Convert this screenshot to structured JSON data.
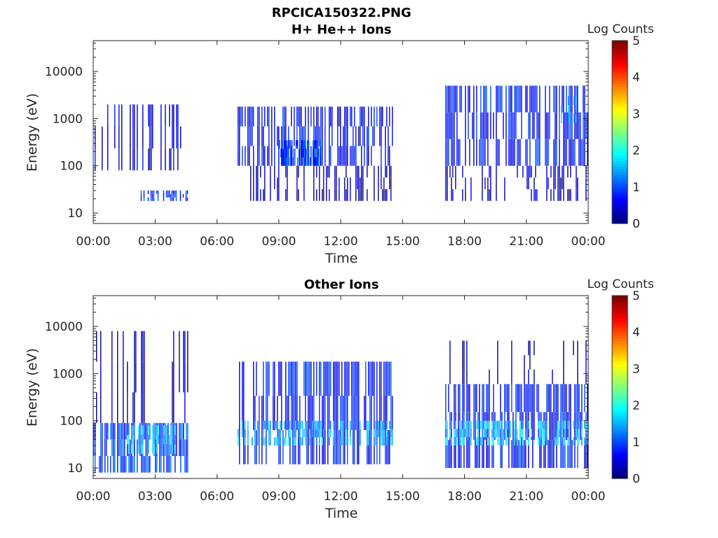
{
  "figure": {
    "title_line1": "RPCICA150322.PNG"
  },
  "colors": {
    "colormap": [
      "#00007f",
      "#0000ff",
      "#007fff",
      "#00ffff",
      "#7fff7f",
      "#ffff00",
      "#ff7f00",
      "#ff0000",
      "#7f0000"
    ],
    "axis": "#262626"
  },
  "chart_data": [
    {
      "type": "heatmap",
      "title": "H+ He++ Ions",
      "xlabel": "Time",
      "ylabel": "Energy (eV)",
      "yscale": "log",
      "ylim": [
        6,
        45000
      ],
      "xlim": [
        0,
        24
      ],
      "x_ticks": [
        "00:00",
        "03:00",
        "06:00",
        "09:00",
        "12:00",
        "15:00",
        "18:00",
        "21:00",
        "00:00"
      ],
      "y_ticks": [
        "10",
        "100",
        "1000",
        "10000"
      ],
      "y_tick_values": [
        10,
        100,
        1000,
        10000
      ],
      "colorbar": {
        "label": "Log Counts",
        "ticks": [
          "0",
          "1",
          "2",
          "3",
          "4",
          "5"
        ],
        "range": [
          0,
          5
        ]
      },
      "data_coverage_hours": [
        [
          0.0,
          4.6
        ],
        [
          7.0,
          14.5
        ],
        [
          17.0,
          24.0
        ]
      ],
      "bands": [
        {
          "t": [
            0.0,
            4.6
          ],
          "e": [
            80,
            2000
          ],
          "level": 0.4,
          "density": 0.35
        },
        {
          "t": [
            2.3,
            4.6
          ],
          "e": [
            18,
            30
          ],
          "level": 0.8,
          "density": 0.8
        },
        {
          "t": [
            7.0,
            14.5
          ],
          "e": [
            100,
            1800
          ],
          "level": 0.6,
          "density": 0.75
        },
        {
          "t": [
            7.0,
            14.5
          ],
          "e": [
            18,
            100
          ],
          "level": 0.2,
          "density": 0.4
        },
        {
          "t": [
            9.0,
            11.0
          ],
          "e": [
            100,
            350
          ],
          "level": 1.0,
          "density": 0.9
        },
        {
          "t": [
            17.0,
            24.0
          ],
          "e": [
            100,
            5000
          ],
          "level": 0.7,
          "density": 0.8
        },
        {
          "t": [
            17.0,
            24.0
          ],
          "e": [
            18,
            100
          ],
          "level": 0.3,
          "density": 0.45
        },
        {
          "t": [
            22.0,
            23.5
          ],
          "e": [
            800,
            3000
          ],
          "level": 1.6,
          "density": 0.15
        }
      ]
    },
    {
      "type": "heatmap",
      "title": "Other Ions",
      "xlabel": "Time",
      "ylabel": "Energy (eV)",
      "yscale": "log",
      "ylim": [
        6,
        45000
      ],
      "xlim": [
        0,
        24
      ],
      "x_ticks": [
        "00:00",
        "03:00",
        "06:00",
        "09:00",
        "12:00",
        "15:00",
        "18:00",
        "21:00",
        "00:00"
      ],
      "y_ticks": [
        "10",
        "100",
        "1000",
        "10000"
      ],
      "y_tick_values": [
        10,
        100,
        1000,
        10000
      ],
      "colorbar": {
        "label": "Log Counts",
        "ticks": [
          "0",
          "1",
          "2",
          "3",
          "4",
          "5"
        ],
        "range": [
          0,
          5
        ]
      },
      "data_coverage_hours": [
        [
          0.0,
          4.6
        ],
        [
          7.0,
          14.5
        ],
        [
          17.0,
          24.0
        ]
      ],
      "bands": [
        {
          "t": [
            0.0,
            4.6
          ],
          "e": [
            8,
            90
          ],
          "level": 0.9,
          "density": 0.85
        },
        {
          "t": [
            1.5,
            4.0
          ],
          "e": [
            20,
            80
          ],
          "level": 1.6,
          "density": 0.5
        },
        {
          "t": [
            0.0,
            4.6
          ],
          "e": [
            90,
            8000
          ],
          "level": 0.3,
          "density": 0.3
        },
        {
          "t": [
            7.0,
            14.5
          ],
          "e": [
            12,
            1800
          ],
          "level": 0.7,
          "density": 0.85
        },
        {
          "t": [
            7.0,
            14.5
          ],
          "e": [
            30,
            100
          ],
          "level": 1.5,
          "density": 0.6
        },
        {
          "t": [
            17.0,
            24.0
          ],
          "e": [
            10,
            600
          ],
          "level": 0.7,
          "density": 0.85
        },
        {
          "t": [
            17.0,
            24.0
          ],
          "e": [
            30,
            100
          ],
          "level": 1.6,
          "density": 0.6
        },
        {
          "t": [
            17.0,
            24.0
          ],
          "e": [
            600,
            5000
          ],
          "level": 0.2,
          "density": 0.12
        }
      ]
    }
  ]
}
